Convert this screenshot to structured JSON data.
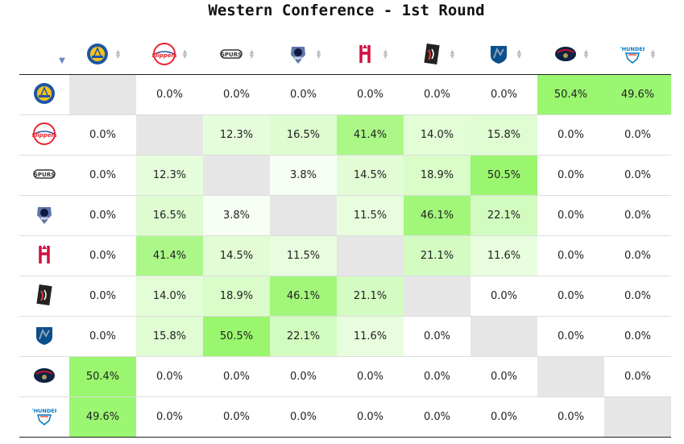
{
  "title": "Western Conference - 1st Round",
  "sort_indicator": "▼",
  "teams": [
    {
      "key": "gsw",
      "icon": "warriors-logo-icon",
      "color": "#1d56a6",
      "accent": "#f9c21b"
    },
    {
      "key": "lac",
      "icon": "clippers-logo-icon",
      "color": "#e8242f",
      "accent": "#1d4fa3",
      "text": "Clippers"
    },
    {
      "key": "sas",
      "icon": "spurs-logo-icon",
      "color": "#333333",
      "accent": "#999999",
      "text": "SPURS"
    },
    {
      "key": "mem",
      "icon": "grizzlies-logo-icon",
      "color": "#5d76a9",
      "accent": "#12173f",
      "text": "MEMPHIS"
    },
    {
      "key": "hou",
      "icon": "rockets-logo-icon",
      "color": "#ce1141",
      "accent": "#ce1141"
    },
    {
      "key": "por",
      "icon": "trail-blazers-logo-icon",
      "color": "#222222",
      "accent": "#e03a3e",
      "text": "PORTLAND"
    },
    {
      "key": "dal",
      "icon": "mavericks-logo-icon",
      "color": "#0b4f8c",
      "accent": "#8ca0b6"
    },
    {
      "key": "nop",
      "icon": "pelicans-logo-icon",
      "color": "#0c2340",
      "accent": "#c8102e"
    },
    {
      "key": "okc",
      "icon": "thunder-logo-icon",
      "color": "#007ac1",
      "accent": "#f05133",
      "text": "THUNDER"
    }
  ],
  "matrix": [
    [
      "",
      "0.0%",
      "0.0%",
      "0.0%",
      "0.0%",
      "0.0%",
      "0.0%",
      "50.4%",
      "49.6%"
    ],
    [
      "0.0%",
      "",
      "12.3%",
      "16.5%",
      "41.4%",
      "14.0%",
      "15.8%",
      "0.0%",
      "0.0%"
    ],
    [
      "0.0%",
      "12.3%",
      "",
      "3.8%",
      "14.5%",
      "18.9%",
      "50.5%",
      "0.0%",
      "0.0%"
    ],
    [
      "0.0%",
      "16.5%",
      "3.8%",
      "",
      "11.5%",
      "46.1%",
      "22.1%",
      "0.0%",
      "0.0%"
    ],
    [
      "0.0%",
      "41.4%",
      "14.5%",
      "11.5%",
      "",
      "21.1%",
      "11.6%",
      "0.0%",
      "0.0%"
    ],
    [
      "0.0%",
      "14.0%",
      "18.9%",
      "46.1%",
      "21.1%",
      "",
      "0.0%",
      "0.0%",
      "0.0%"
    ],
    [
      "0.0%",
      "15.8%",
      "50.5%",
      "22.1%",
      "11.6%",
      "0.0%",
      "",
      "0.0%",
      "0.0%"
    ],
    [
      "50.4%",
      "0.0%",
      "0.0%",
      "0.0%",
      "0.0%",
      "0.0%",
      "0.0%",
      "",
      "0.0%"
    ],
    [
      "49.6%",
      "0.0%",
      "0.0%",
      "0.0%",
      "0.0%",
      "0.0%",
      "0.0%",
      "0.0%",
      ""
    ]
  ],
  "colors": {
    "diagonal": "#e6e6e6",
    "heat_max": "#99f66e",
    "heat_min": "#ffffff"
  }
}
